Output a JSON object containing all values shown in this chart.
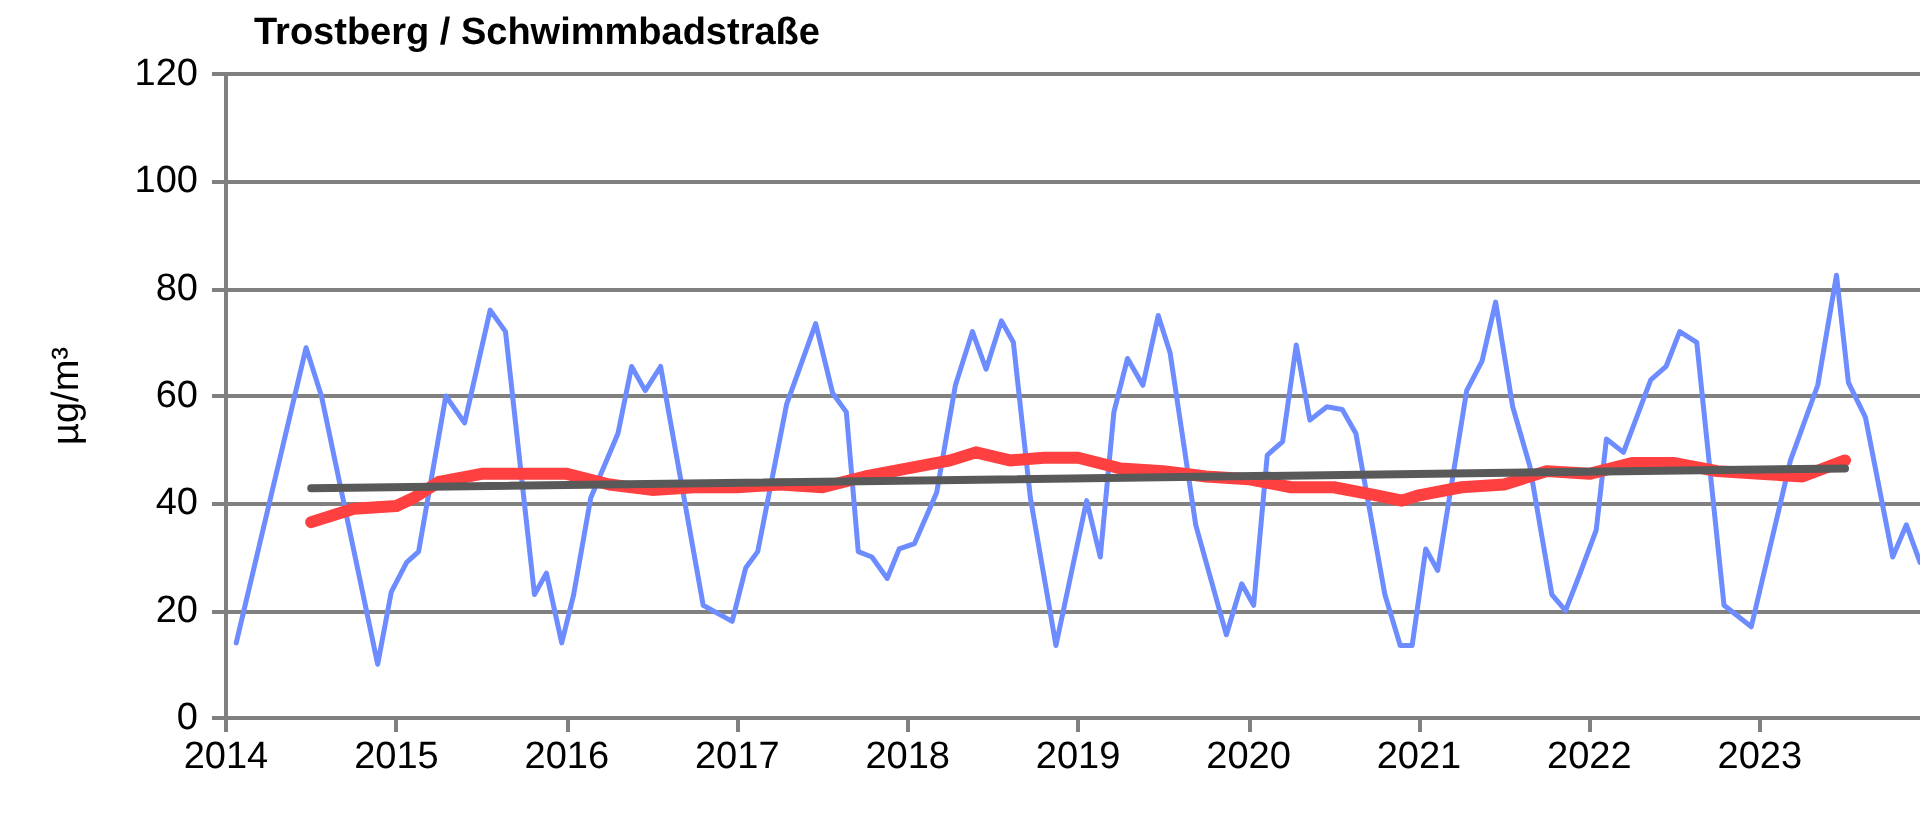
{
  "chart_data": {
    "type": "line",
    "title": "Trostberg / Schwimmbadstraße",
    "ylabel": "µg/m³",
    "xlim": [
      2014,
      2023.94
    ],
    "xticks": [
      2014,
      2015,
      2016,
      2017,
      2018,
      2019,
      2020,
      2021,
      2022,
      2023
    ],
    "ylim": [
      0,
      120
    ],
    "yticks": [
      0,
      20,
      40,
      60,
      80,
      100,
      120
    ],
    "grid": "y",
    "legend": false,
    "marker": "none",
    "line_style": "solid",
    "series": [
      {
        "color": "#6d8cff",
        "x": [
          2014.06,
          2014.47,
          2014.56,
          2014.89,
          2014.97,
          2015.06,
          2015.13,
          2015.29,
          2015.4,
          2015.55,
          2015.64,
          2015.81,
          2015.88,
          2015.97,
          2016.04,
          2016.14,
          2016.3,
          2016.38,
          2016.46,
          2016.55,
          2016.8,
          2016.97,
          2017.05,
          2017.12,
          2017.29,
          2017.46,
          2017.56,
          2017.64,
          2017.71,
          2017.79,
          2017.88,
          2017.95,
          2018.04,
          2018.17,
          2018.28,
          2018.38,
          2018.46,
          2018.55,
          2018.62,
          2018.72,
          2018.87,
          2019.05,
          2019.13,
          2019.21,
          2019.29,
          2019.38,
          2019.47,
          2019.54,
          2019.69,
          2019.87,
          2019.96,
          2020.03,
          2020.11,
          2020.2,
          2020.28,
          2020.36,
          2020.46,
          2020.55,
          2020.63,
          2020.8,
          2020.89,
          2020.96,
          2021.04,
          2021.11,
          2021.28,
          2021.37,
          2021.45,
          2021.55,
          2021.65,
          2021.78,
          2021.86,
          2021.94,
          2022.04,
          2022.1,
          2022.2,
          2022.36,
          2022.45,
          2022.53,
          2022.63,
          2022.79,
          2022.95,
          2023.18,
          2023.34,
          2023.45,
          2023.52,
          2023.62,
          2023.78,
          2023.86,
          2023.94
        ],
        "values": [
          14,
          69,
          60,
          10,
          23.5,
          29,
          31,
          60,
          55,
          76,
          72,
          23,
          27,
          14,
          23,
          41,
          53,
          65.5,
          61,
          65.5,
          21,
          18,
          28,
          31,
          58.5,
          73.5,
          60.5,
          57,
          31,
          30,
          26,
          31.5,
          32.5,
          42,
          62,
          72,
          65,
          74,
          70,
          41,
          13.5,
          40.5,
          30,
          57,
          67,
          62,
          75,
          68,
          36,
          15.5,
          25,
          21,
          49,
          51.5,
          69.5,
          55.5,
          58,
          57.5,
          53,
          23,
          13.5,
          13.5,
          31.5,
          27.5,
          61,
          66.5,
          77.5,
          58,
          47,
          23,
          20,
          26.5,
          35,
          52,
          49.5,
          63,
          65.5,
          72,
          70,
          21,
          17,
          48,
          62,
          82.5,
          62.5,
          56,
          30,
          36,
          29
        ]
      },
      {
        "color": "#ff4040",
        "x": [
          2014.5,
          2014.75,
          2015.0,
          2015.1,
          2015.25,
          2015.5,
          2015.75,
          2016.0,
          2016.25,
          2016.5,
          2016.75,
          2017.0,
          2017.25,
          2017.5,
          2017.75,
          2018.0,
          2018.25,
          2018.4,
          2018.6,
          2018.8,
          2019.0,
          2019.25,
          2019.5,
          2019.75,
          2020.0,
          2020.25,
          2020.5,
          2020.75,
          2020.9,
          2021.0,
          2021.25,
          2021.5,
          2021.75,
          2022.0,
          2022.25,
          2022.5,
          2022.75,
          2023.0,
          2023.25,
          2023.5
        ],
        "values": [
          36.5,
          39,
          39.5,
          41,
          44,
          45.5,
          45.5,
          45.5,
          43.5,
          42.5,
          43,
          43,
          43.5,
          43,
          45,
          46.5,
          48,
          49.5,
          48,
          48.5,
          48.5,
          46.5,
          46,
          45,
          44.5,
          43,
          43,
          41.5,
          40.5,
          41.5,
          43,
          43.5,
          46,
          45.5,
          47.5,
          47.5,
          46,
          45.5,
          45,
          48
        ]
      },
      {
        "color": "#595959",
        "x": [
          2014.5,
          2023.5
        ],
        "values": [
          42.8,
          46.5
        ]
      }
    ]
  }
}
